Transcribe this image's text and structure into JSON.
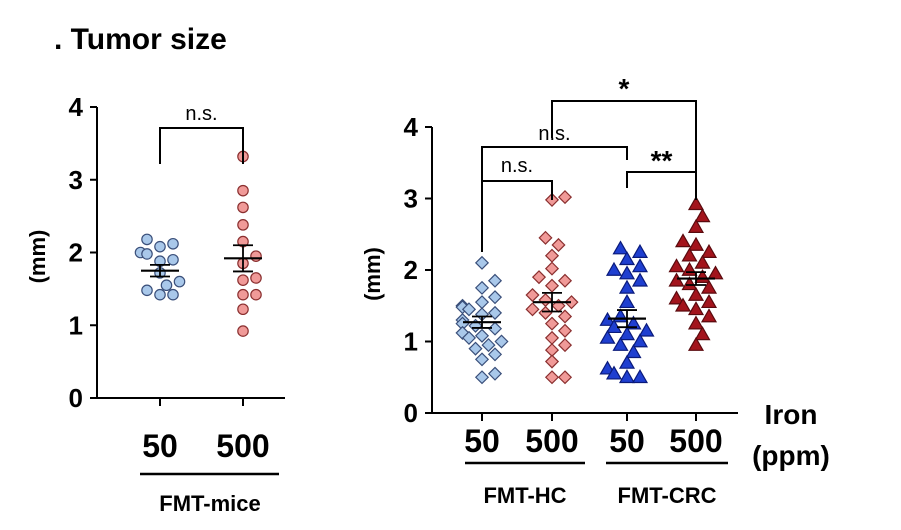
{
  "page": {
    "title": ". Tumor size"
  },
  "chart_data": [
    {
      "type": "scatter",
      "panel": "left",
      "ylabel": "(mm)",
      "ylim": [
        0,
        4
      ],
      "yticks": [
        "0",
        "1",
        "2",
        "3",
        "4"
      ],
      "categories": [
        "50",
        "500"
      ],
      "group_label": "FMT-mice",
      "series": [
        {
          "category": "50",
          "marker": "circle",
          "color": "#a9c8ea",
          "edge": "#3a4f7a",
          "mean": 1.75,
          "sem": 0.08,
          "values": [
            2.18,
            2.12,
            2.08,
            2.0,
            1.98,
            1.9,
            1.88,
            1.72,
            1.6,
            1.55,
            1.48,
            1.42,
            1.42
          ]
        },
        {
          "category": "500",
          "marker": "circle",
          "color": "#f09a98",
          "edge": "#8a2f2f",
          "mean": 1.92,
          "sem": 0.18,
          "values": [
            3.32,
            2.85,
            2.62,
            2.38,
            2.15,
            1.95,
            1.85,
            1.65,
            1.62,
            1.42,
            1.42,
            1.22,
            0.92
          ]
        }
      ],
      "annotations": [
        {
          "between": [
            "50",
            "500"
          ],
          "label": "n.s."
        }
      ]
    },
    {
      "type": "scatter",
      "panel": "right",
      "ylabel": "(mm)",
      "ylim": [
        0,
        4
      ],
      "yticks": [
        "0",
        "1",
        "2",
        "3",
        "4"
      ],
      "categories": [
        "50",
        "500",
        "50",
        "500"
      ],
      "groups": [
        {
          "label": "FMT-HC",
          "span": [
            0,
            1
          ]
        },
        {
          "label": "FMT-CRC",
          "span": [
            2,
            3
          ]
        }
      ],
      "x_unit_label": [
        "Iron",
        "(ppm)"
      ],
      "series": [
        {
          "category_index": 0,
          "marker": "diamond",
          "color": "#a9c8ea",
          "edge": "#3a4f7a",
          "mean": 1.27,
          "sem": 0.08,
          "values": [
            2.1,
            1.85,
            1.75,
            1.62,
            1.55,
            1.5,
            1.48,
            1.45,
            1.4,
            1.38,
            1.3,
            1.25,
            1.22,
            1.18,
            1.12,
            1.08,
            1.05,
            1.0,
            0.95,
            0.9,
            0.82,
            0.75,
            0.55,
            0.5
          ]
        },
        {
          "category_index": 1,
          "marker": "diamond",
          "color": "#f09a98",
          "edge": "#8a2f2f",
          "mean": 1.55,
          "sem": 0.13,
          "values": [
            3.02,
            2.98,
            2.45,
            2.35,
            2.2,
            2.02,
            1.9,
            1.85,
            1.78,
            1.65,
            1.58,
            1.55,
            1.5,
            1.45,
            1.4,
            1.35,
            1.25,
            1.15,
            1.05,
            0.95,
            0.88,
            0.72,
            0.5,
            0.5
          ]
        },
        {
          "category_index": 2,
          "marker": "triangle",
          "color": "#1f3fd0",
          "edge": "#0a1a7a",
          "mean": 1.32,
          "sem": 0.12,
          "values": [
            2.3,
            2.25,
            2.15,
            2.05,
            2.0,
            1.95,
            1.85,
            1.75,
            1.55,
            1.35,
            1.3,
            1.25,
            1.2,
            1.15,
            1.1,
            1.05,
            1.0,
            0.95,
            0.85,
            0.7,
            0.62,
            0.55,
            0.5,
            0.5
          ]
        },
        {
          "category_index": 3,
          "marker": "triangle",
          "color": "#a3141c",
          "edge": "#5a0a0e",
          "mean": 1.88,
          "sem": 0.09,
          "values": [
            2.92,
            2.75,
            2.6,
            2.4,
            2.35,
            2.25,
            2.2,
            2.1,
            2.05,
            2.0,
            1.95,
            1.9,
            1.85,
            1.8,
            1.75,
            1.65,
            1.6,
            1.55,
            1.5,
            1.45,
            1.35,
            1.25,
            1.1,
            0.95
          ]
        }
      ],
      "annotations": [
        {
          "between": [
            0,
            1
          ],
          "label": "n.s."
        },
        {
          "between": [
            0,
            2
          ],
          "label": "n.s."
        },
        {
          "between": [
            2,
            3
          ],
          "label": "**"
        },
        {
          "between": [
            1,
            3
          ],
          "label": "*"
        }
      ]
    }
  ]
}
